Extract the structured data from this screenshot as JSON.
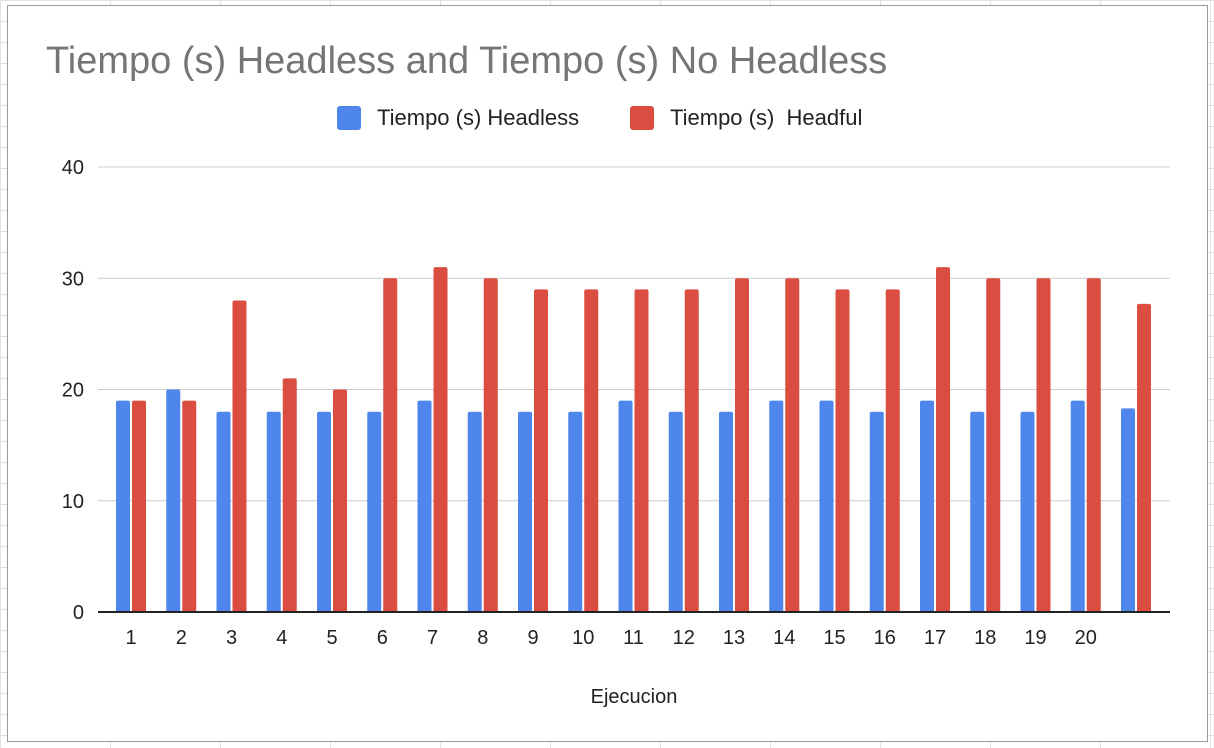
{
  "chart_data": {
    "type": "bar",
    "title": "Tiempo (s) Headless and Tiempo (s) No Headless",
    "xlabel": "Ejecucion",
    "ylabel": "",
    "ylim": [
      0,
      40
    ],
    "y_ticks": [
      "0",
      "10",
      "20",
      "30",
      "40"
    ],
    "categories": [
      "1",
      "2",
      "3",
      "4",
      "5",
      "6",
      "7",
      "8",
      "9",
      "10",
      "11",
      "12",
      "13",
      "14",
      "15",
      "16",
      "17",
      "18",
      "19",
      "20",
      ""
    ],
    "series": [
      {
        "name": "Tiempo (s) Headless",
        "color": "#4e86ec",
        "values": [
          19,
          20,
          18,
          18,
          18,
          18,
          19,
          18,
          18,
          18,
          19,
          18,
          18,
          19,
          19,
          18,
          19,
          18,
          18,
          19,
          18.3
        ]
      },
      {
        "name": "Tiempo (s)  Headful",
        "color": "#db4d40",
        "values": [
          19,
          19,
          28,
          21,
          20,
          30,
          31,
          30,
          29,
          29,
          29,
          29,
          30,
          30,
          29,
          29,
          31,
          30,
          30,
          30,
          27.7
        ]
      }
    ],
    "grid": true,
    "legend_position": "top-center"
  }
}
